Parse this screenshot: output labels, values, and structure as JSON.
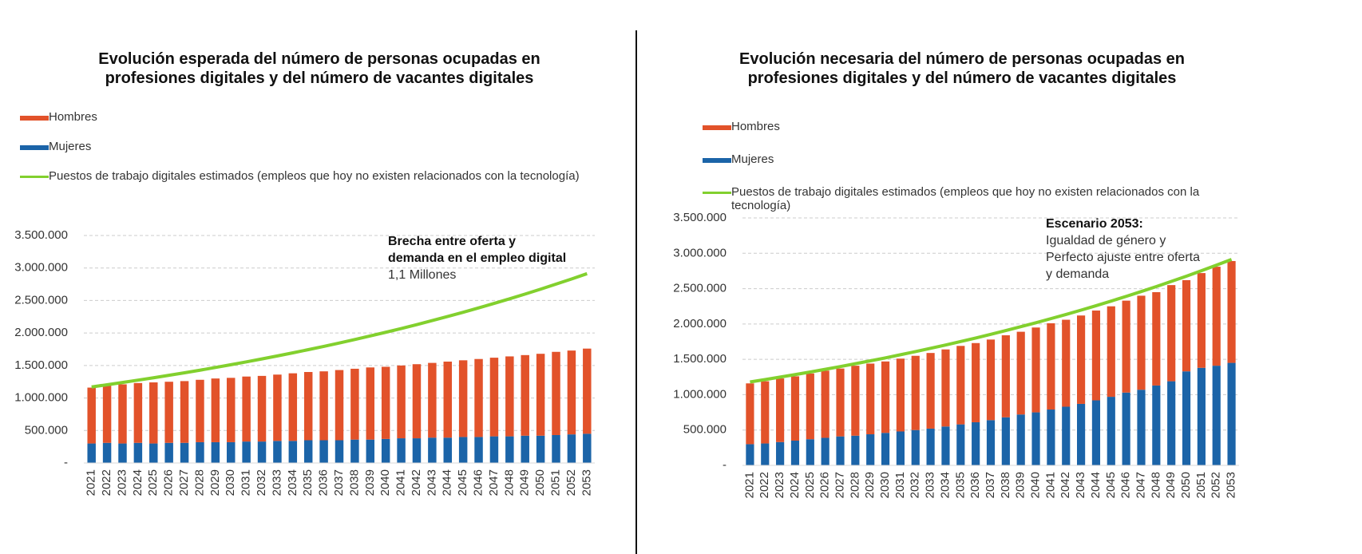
{
  "chart_data": [
    {
      "type": "bar",
      "stacked": true,
      "title": "Evolución esperada del número de personas ocupadas en profesiones digitales y del número de vacantes digitales",
      "annotation_title": "Brecha entre oferta y demanda en el empleo digital",
      "annotation_text": "1,1 Millones",
      "categories": [
        "2021",
        "2022",
        "2023",
        "2024",
        "2025",
        "2026",
        "2027",
        "2028",
        "2029",
        "2030",
        "2031",
        "2032",
        "2033",
        "2034",
        "2035",
        "2036",
        "2037",
        "2038",
        "2039",
        "2040",
        "2041",
        "2042",
        "2043",
        "2044",
        "2045",
        "2046",
        "2047",
        "2048",
        "2049",
        "2050",
        "2051",
        "2052",
        "2053"
      ],
      "series": [
        {
          "name": "Hombres",
          "color": "#e2522a",
          "values": [
            860000,
            880000,
            910000,
            920000,
            940000,
            940000,
            950000,
            960000,
            980000,
            990000,
            1000000,
            1010000,
            1020000,
            1040000,
            1050000,
            1060000,
            1080000,
            1090000,
            1110000,
            1110000,
            1120000,
            1140000,
            1150000,
            1170000,
            1180000,
            1200000,
            1210000,
            1230000,
            1240000,
            1260000,
            1280000,
            1290000,
            1310000
          ]
        },
        {
          "name": "Mujeres",
          "color": "#1b64a8",
          "values": [
            300000,
            310000,
            300000,
            310000,
            300000,
            310000,
            310000,
            320000,
            320000,
            320000,
            330000,
            330000,
            340000,
            340000,
            350000,
            350000,
            350000,
            360000,
            360000,
            370000,
            380000,
            380000,
            390000,
            390000,
            400000,
            400000,
            410000,
            410000,
            420000,
            420000,
            430000,
            440000,
            450000
          ]
        },
        {
          "name": "Puestos de trabajo digitales estimados (empleos que hoy no existen relacionados con la tecnología)",
          "color": "#82d02e",
          "type": "line",
          "values": [
            1170000,
            1204000,
            1239000,
            1275000,
            1311000,
            1349000,
            1388000,
            1428000,
            1470000,
            1512000,
            1556000,
            1601000,
            1647000,
            1695000,
            1744000,
            1794000,
            1846000,
            1900000,
            1955000,
            2011000,
            2069000,
            2129000,
            2191000,
            2254000,
            2319000,
            2386000,
            2455000,
            2526000,
            2599000,
            2674000,
            2752000,
            2831000,
            2913000
          ]
        }
      ],
      "ylim": [
        0,
        3500000
      ],
      "yticks": [
        {
          "value": 0,
          "label": "-"
        },
        {
          "value": 500000,
          "label": "500.000"
        },
        {
          "value": 1000000,
          "label": "1.000.000"
        },
        {
          "value": 1500000,
          "label": "1.500.000"
        },
        {
          "value": 2000000,
          "label": "2.000.000"
        },
        {
          "value": 2500000,
          "label": "2.500.000"
        },
        {
          "value": 3000000,
          "label": "3.000.000"
        },
        {
          "value": 3500000,
          "label": "3.500.000"
        }
      ],
      "grid": true
    },
    {
      "type": "bar",
      "stacked": true,
      "title": "Evolución necesaria del número de personas ocupadas en profesiones digitales y del número de vacantes digitales",
      "annotation_title": "Escenario 2053:",
      "annotation_text": "Igualdad de género y Perfecto ajuste entre oferta y demanda",
      "categories": [
        "2021",
        "2022",
        "2023",
        "2024",
        "2025",
        "2026",
        "2027",
        "2028",
        "2029",
        "2030",
        "2031",
        "2032",
        "2033",
        "2034",
        "2035",
        "2036",
        "2037",
        "2038",
        "2039",
        "2040",
        "2041",
        "2042",
        "2043",
        "2044",
        "2045",
        "2046",
        "2047",
        "2048",
        "2049",
        "2050",
        "2051",
        "2052",
        "2053"
      ],
      "series": [
        {
          "name": "Hombres",
          "color": "#e2522a",
          "values": [
            860000,
            880000,
            900000,
            910000,
            930000,
            950000,
            960000,
            990000,
            1000000,
            1010000,
            1030000,
            1050000,
            1070000,
            1090000,
            1110000,
            1120000,
            1140000,
            1160000,
            1170000,
            1200000,
            1220000,
            1230000,
            1250000,
            1270000,
            1280000,
            1300000,
            1330000,
            1320000,
            1360000,
            1290000,
            1340000,
            1400000,
            1440000
          ]
        },
        {
          "name": "Mujeres",
          "color": "#1b64a8",
          "values": [
            300000,
            310000,
            330000,
            350000,
            370000,
            390000,
            410000,
            420000,
            440000,
            460000,
            480000,
            500000,
            520000,
            550000,
            580000,
            610000,
            640000,
            680000,
            720000,
            750000,
            790000,
            830000,
            870000,
            920000,
            970000,
            1030000,
            1070000,
            1130000,
            1190000,
            1330000,
            1380000,
            1410000,
            1450000
          ]
        },
        {
          "name": "Puestos de trabajo digitales estimados (empleos que hoy no existen relacionados con la tecnología)",
          "color": "#82d02e",
          "type": "line",
          "values": [
            1180000,
            1214000,
            1249000,
            1284000,
            1321000,
            1359000,
            1398000,
            1438000,
            1479000,
            1521000,
            1565000,
            1610000,
            1656000,
            1703000,
            1752000,
            1802000,
            1854000,
            1907000,
            1962000,
            2018000,
            2076000,
            2135000,
            2196000,
            2259000,
            2324000,
            2391000,
            2459000,
            2529000,
            2602000,
            2676000,
            2753000,
            2832000,
            2913000
          ]
        }
      ],
      "ylim": [
        0,
        3500000
      ],
      "yticks": [
        {
          "value": 0,
          "label": "-"
        },
        {
          "value": 500000,
          "label": "500.000"
        },
        {
          "value": 1000000,
          "label": "1.000.000"
        },
        {
          "value": 1500000,
          "label": "1.500.000"
        },
        {
          "value": 2000000,
          "label": "2.000.000"
        },
        {
          "value": 2500000,
          "label": "2.500.000"
        },
        {
          "value": 3000000,
          "label": "3.000.000"
        },
        {
          "value": 3500000,
          "label": "3.500.000"
        }
      ],
      "grid": true
    }
  ]
}
